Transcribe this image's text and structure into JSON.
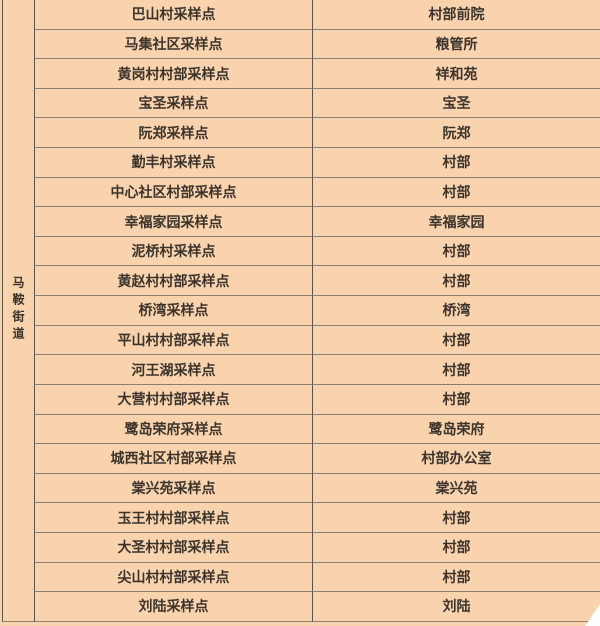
{
  "colors": {
    "background": "#f9d3ae",
    "row_border": "#8d8175",
    "divider": "#5a544b",
    "text": "#3b342c"
  },
  "street_column": {
    "label": "马鞍街道"
  },
  "table": {
    "rows": [
      {
        "point": "巴山村采样点",
        "location": "村部前院"
      },
      {
        "point": "马集社区采样点",
        "location": "粮管所"
      },
      {
        "point": "黄岗村村部采样点",
        "location": "祥和苑"
      },
      {
        "point": "宝圣采样点",
        "location": "宝圣"
      },
      {
        "point": "阮郑采样点",
        "location": "阮郑"
      },
      {
        "point": "勤丰村采样点",
        "location": "村部"
      },
      {
        "point": "中心社区村部采样点",
        "location": "村部"
      },
      {
        "point": "幸福家园采样点",
        "location": "幸福家园"
      },
      {
        "point": "泥桥村采样点",
        "location": "村部"
      },
      {
        "point": "黄赵村村部采样点",
        "location": "村部"
      },
      {
        "point": "桥湾采样点",
        "location": "桥湾"
      },
      {
        "point": "平山村村部采样点",
        "location": "村部"
      },
      {
        "point": "河王湖采样点",
        "location": "村部"
      },
      {
        "point": "大营村村部采样点",
        "location": "村部"
      },
      {
        "point": "鹭岛荣府采样点",
        "location": "鹭岛荣府"
      },
      {
        "point": "城西社区村部采样点",
        "location": "村部办公室"
      },
      {
        "point": "棠兴苑采样点",
        "location": "棠兴苑"
      },
      {
        "point": "玉王村村部采样点",
        "location": "村部"
      },
      {
        "point": "大圣村村部采样点",
        "location": "村部"
      },
      {
        "point": "尖山村村部采样点",
        "location": "村部"
      },
      {
        "point": "刘陆采样点",
        "location": "刘陆"
      }
    ]
  }
}
